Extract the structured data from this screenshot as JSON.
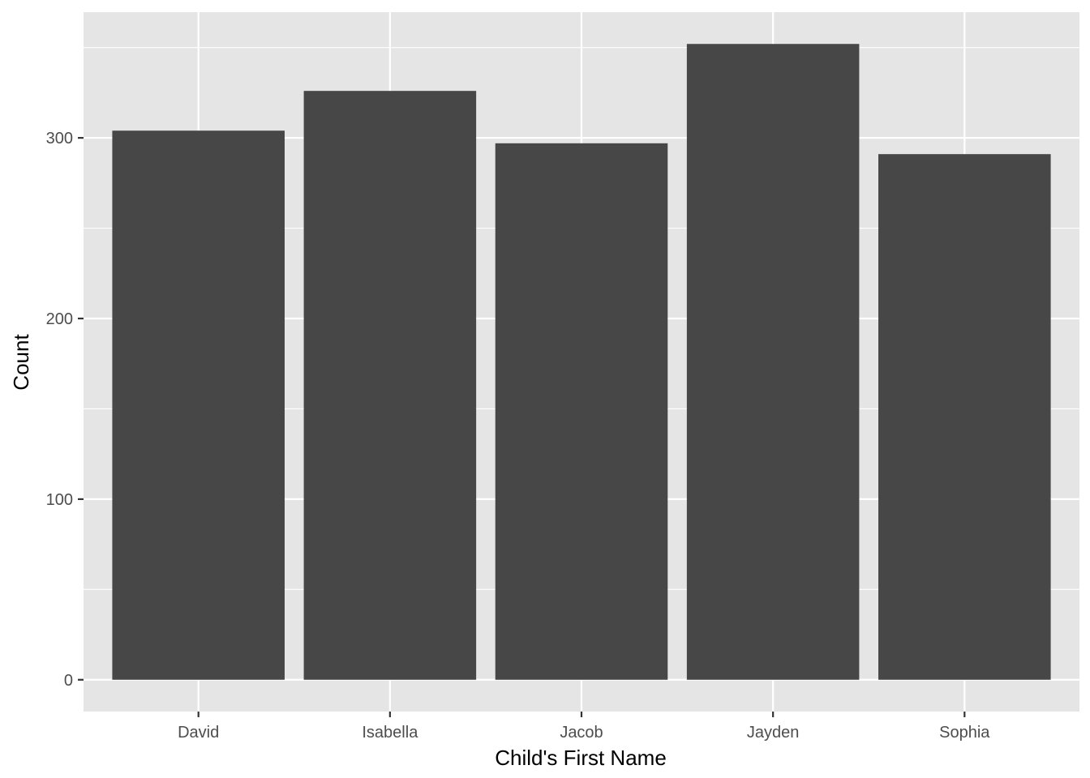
{
  "chart_data": {
    "type": "bar",
    "title": "",
    "xlabel": "Child's First Name",
    "ylabel": "Count",
    "categories": [
      "David",
      "Isabella",
      "Jacob",
      "Jayden",
      "Sophia"
    ],
    "values": [
      304,
      326,
      297,
      352,
      291
    ],
    "ylim": [
      -17.6,
      369.6
    ],
    "yticks": [
      0,
      100,
      200,
      300
    ],
    "grid": true,
    "legend": "none",
    "colors": {
      "bar": "#474747",
      "panel": "#e5e5e5",
      "grid": "#ffffff",
      "tick": "#333333"
    }
  }
}
